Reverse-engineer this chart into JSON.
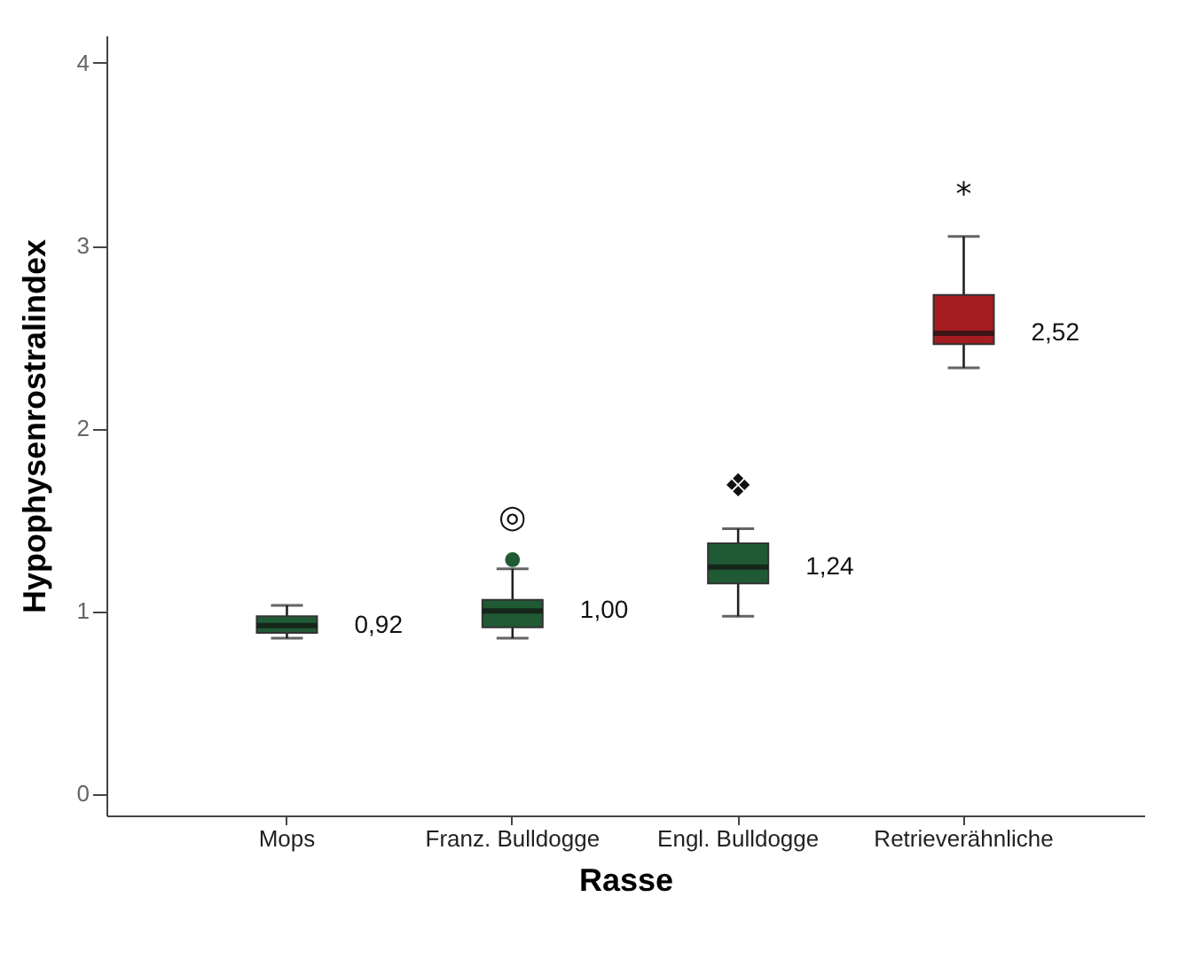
{
  "chart_data": {
    "type": "box",
    "xlabel": "Rasse",
    "ylabel": "Hypophysenrostralindex",
    "categories": [
      "Mops",
      "Franz. Bulldogge",
      "Engl. Bulldogge",
      "Retrieverähnliche"
    ],
    "colors": [
      "#1f5a34",
      "#1f5a34",
      "#1f5a34",
      "#a51c20"
    ],
    "boxes": [
      {
        "low": 0.85,
        "q1": 0.88,
        "median": 0.92,
        "q3": 0.97,
        "high": 1.03
      },
      {
        "low": 0.85,
        "q1": 0.91,
        "median": 1.0,
        "q3": 1.06,
        "high": 1.23,
        "outliers": [
          1.28
        ]
      },
      {
        "low": 0.97,
        "q1": 1.15,
        "median": 1.24,
        "q3": 1.37,
        "high": 1.45
      },
      {
        "low": 2.33,
        "q1": 2.46,
        "median": 2.52,
        "q3": 2.73,
        "high": 3.05
      }
    ],
    "ylim": [
      -0.12,
      4.15
    ],
    "yticks": [
      0,
      1,
      2,
      3,
      4
    ],
    "grid": false,
    "annotations": [
      {
        "text": "0,92",
        "x": "Mops",
        "y": 0.92
      },
      {
        "text": "1,00",
        "x": "Franz. Bulldogge",
        "y": 1.0
      },
      {
        "text": "1,24",
        "x": "Engl. Bulldogge",
        "y": 1.24
      },
      {
        "text": "2,52",
        "x": "Retrieverähnliche",
        "y": 2.52
      },
      "◎",
      "❖",
      "*"
    ]
  }
}
